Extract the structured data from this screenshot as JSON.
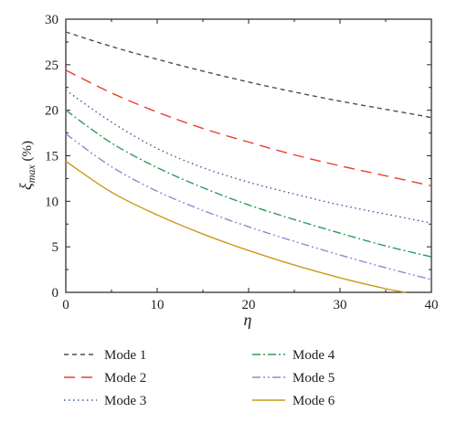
{
  "chart_data": {
    "type": "line",
    "xlabel": "η",
    "ylabel_main": "ξ",
    "ylabel_sub": "max",
    "ylabel_unit": " (%)",
    "xlim": [
      0,
      40
    ],
    "ylim": [
      0,
      30
    ],
    "xticks": [
      "0",
      "10",
      "20",
      "30",
      "40"
    ],
    "yticks": [
      "0",
      "5",
      "10",
      "15",
      "20",
      "25",
      "30"
    ],
    "grid": false,
    "legend_position": "bottom",
    "x": [
      0,
      5,
      10,
      15,
      20,
      25,
      30,
      35,
      40
    ],
    "series": [
      {
        "name": "Mode 1",
        "color": "#4d4d4d",
        "dash": "dashed",
        "values": [
          28.6,
          27.0,
          25.6,
          24.3,
          23.1,
          22.0,
          21.0,
          20.1,
          19.2
        ]
      },
      {
        "name": "Mode 2",
        "color": "#e8402c",
        "dash": "long-dash",
        "values": [
          24.4,
          21.9,
          19.8,
          18.0,
          16.5,
          15.1,
          13.9,
          12.8,
          11.7
        ]
      },
      {
        "name": "Mode 3",
        "color": "#3b5b9a",
        "dash": "dotted",
        "values": [
          22.2,
          18.7,
          15.8,
          13.7,
          12.1,
          10.8,
          9.6,
          8.6,
          7.6
        ]
      },
      {
        "name": "Mode 4",
        "color": "#2e9b5a",
        "dash": "dash-dot",
        "values": [
          20.0,
          16.4,
          13.7,
          11.5,
          9.6,
          8.0,
          6.5,
          5.1,
          3.9
        ]
      },
      {
        "name": "Mode 5",
        "color": "#a57fd1",
        "dash": "dash-dot-dot",
        "values": [
          17.4,
          13.8,
          11.1,
          9.0,
          7.2,
          5.6,
          4.1,
          2.7,
          1.4
        ]
      },
      {
        "name": "Mode 6",
        "color": "#c99a1c",
        "dash": "solid",
        "values": [
          14.4,
          11.0,
          8.5,
          6.4,
          4.6,
          3.0,
          1.6,
          0.4,
          null
        ]
      }
    ],
    "mode6_zero_crossing_x": 37.2
  }
}
